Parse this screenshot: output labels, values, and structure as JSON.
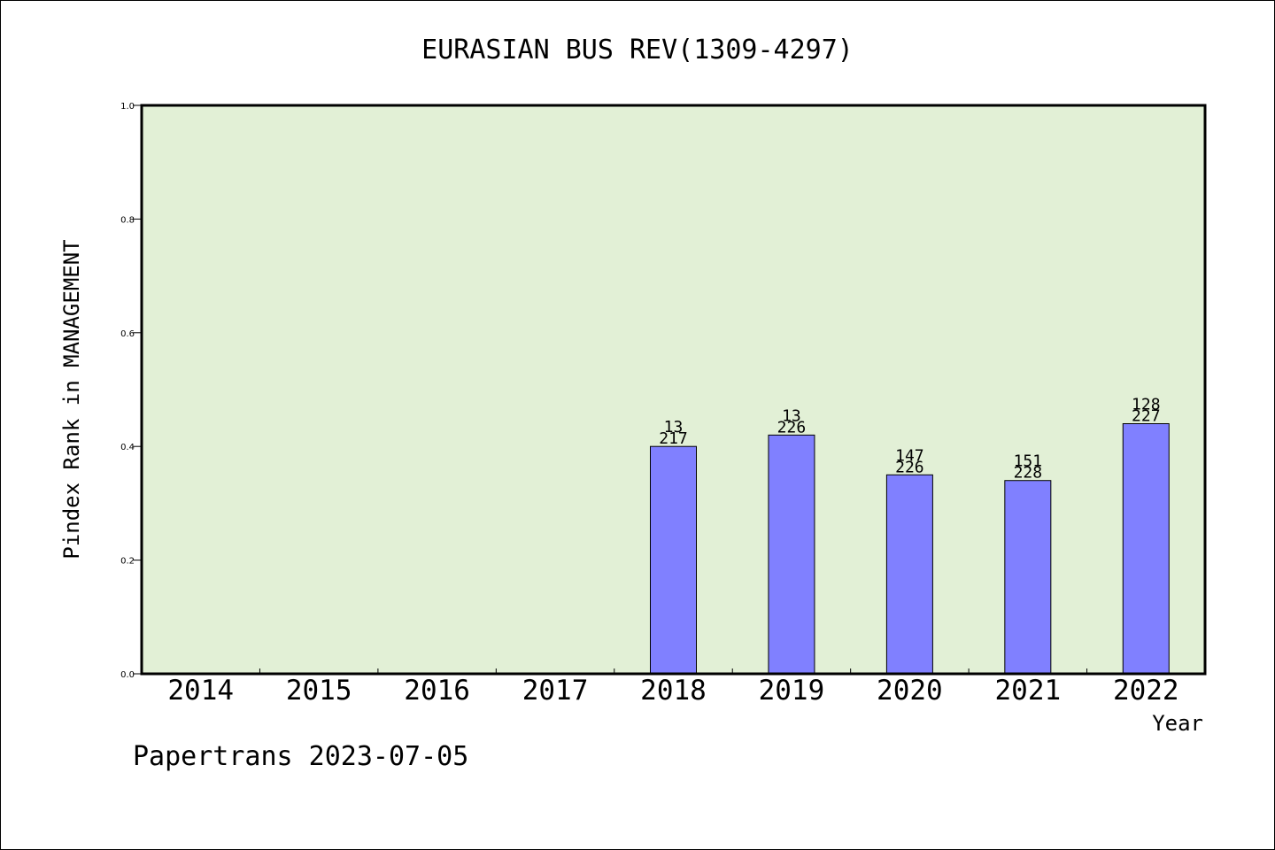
{
  "chart_data": {
    "type": "bar",
    "title": "EURASIAN BUS REV(1309-4297)",
    "xlabel": "Year",
    "ylabel": "Pindex Rank in MANAGEMENT",
    "categories": [
      "2014",
      "2015",
      "2016",
      "2017",
      "2018",
      "2019",
      "2020",
      "2021",
      "2022"
    ],
    "values": [
      null,
      null,
      null,
      null,
      0.4,
      0.42,
      0.35,
      0.34,
      0.44
    ],
    "bar_labels_top": [
      "",
      "",
      "",
      "",
      "13",
      "13",
      "147",
      "151",
      "128"
    ],
    "bar_labels_bottom": [
      "",
      "",
      "",
      "",
      "217",
      "226",
      "226",
      "228",
      "227"
    ],
    "ylim": [
      0.0,
      1.0
    ],
    "yticks": [
      0.0,
      0.2,
      0.4,
      0.6,
      0.8,
      1.0
    ],
    "ytick_labels": [
      "0.0",
      "0.2",
      "0.4",
      "0.6",
      "0.8",
      "1.0"
    ],
    "grid": false,
    "legend": "none",
    "colors": {
      "plot_background": "#e2f0d6",
      "bar_fill": "#8080ff",
      "bar_edge": "#000000",
      "axis": "#000000"
    }
  },
  "footer": {
    "text": "Papertrans 2023-07-05"
  }
}
